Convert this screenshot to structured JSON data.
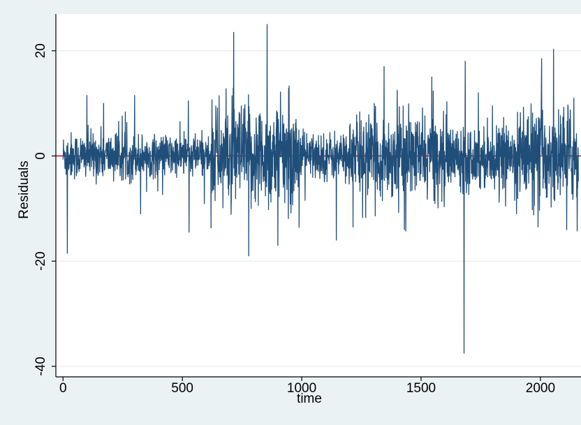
{
  "chart_data": {
    "type": "line",
    "title": "",
    "xlabel": "time",
    "ylabel": "Residuals",
    "xlim": [
      -30,
      2170
    ],
    "ylim": [
      -42,
      27
    ],
    "x_ticks": [
      0,
      500,
      1000,
      1500,
      2000
    ],
    "y_ticks": [
      -40,
      -20,
      0,
      20
    ],
    "grid": "horizontal",
    "legend": "none",
    "reference_line": {
      "y": 0,
      "color": "#c0143c"
    },
    "series": [
      {
        "color": "#1f4e79",
        "n_points": 2160,
        "baseline_noise_sd": 1.6,
        "volatility_segments": [
          {
            "x": [
              0,
              300
            ],
            "sd": 2.2
          },
          {
            "x": [
              300,
              620
            ],
            "sd": 2.0
          },
          {
            "x": [
              620,
              1000
            ],
            "sd": 4.8
          },
          {
            "x": [
              1000,
              1200
            ],
            "sd": 2.2
          },
          {
            "x": [
              1200,
              1620
            ],
            "sd": 3.8
          },
          {
            "x": [
              1620,
              1900
            ],
            "sd": 2.8
          },
          {
            "x": [
              1900,
              2160
            ],
            "sd": 4.4
          }
        ],
        "notable_points": [
          {
            "x": 18,
            "y": -18.5
          },
          {
            "x": 100,
            "y": 11.5
          },
          {
            "x": 170,
            "y": -15.5
          },
          {
            "x": 170,
            "y": 10
          },
          {
            "x": 300,
            "y": 11.5
          },
          {
            "x": 325,
            "y": -11
          },
          {
            "x": 525,
            "y": 10.5
          },
          {
            "x": 528,
            "y": -14.5
          },
          {
            "x": 715,
            "y": 23.5
          },
          {
            "x": 778,
            "y": -19
          },
          {
            "x": 855,
            "y": 25
          },
          {
            "x": 900,
            "y": -17
          },
          {
            "x": 1145,
            "y": -16
          },
          {
            "x": 1215,
            "y": -13.5
          },
          {
            "x": 1345,
            "y": 17
          },
          {
            "x": 1400,
            "y": 12.5
          },
          {
            "x": 1430,
            "y": -14
          },
          {
            "x": 1545,
            "y": 15
          },
          {
            "x": 1680,
            "y": -37.5
          },
          {
            "x": 1685,
            "y": 18
          },
          {
            "x": 1740,
            "y": 12
          },
          {
            "x": 1900,
            "y": -11
          },
          {
            "x": 1990,
            "y": -13.5
          },
          {
            "x": 2005,
            "y": 18.5
          },
          {
            "x": 2110,
            "y": -14
          },
          {
            "x": 2140,
            "y": 11
          }
        ]
      }
    ]
  }
}
